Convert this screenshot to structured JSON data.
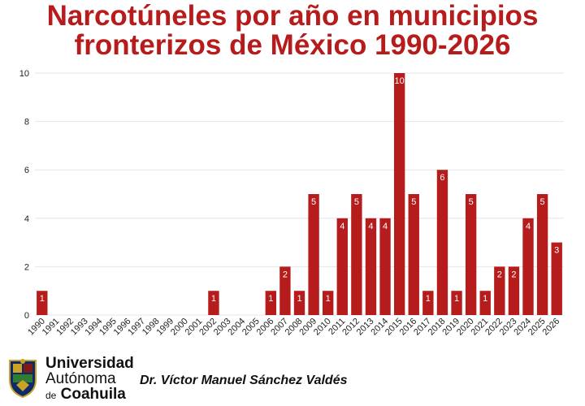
{
  "title_lines": [
    "Narcotúneles por año en municipios",
    "fronterizos de México 1990-2026"
  ],
  "colors": {
    "bar": "#b71c1c",
    "title": "#b71c1c",
    "grid": "#e6e6e6",
    "text": "#222222"
  },
  "chart_data": {
    "type": "bar",
    "title": "Narcotúneles por año en municipios fronterizos de México 1990-2026",
    "xlabel": "",
    "ylabel": "",
    "ylim": [
      0,
      10
    ],
    "yticks": [
      0,
      2,
      4,
      6,
      8,
      10
    ],
    "grid": true,
    "legend": "none",
    "categories": [
      "1990",
      "1991",
      "1992",
      "1993",
      "1994",
      "1995",
      "1996",
      "1997",
      "1998",
      "1999",
      "2000",
      "2001",
      "2002",
      "2003",
      "2004",
      "2005",
      "2006",
      "2007",
      "2008",
      "2009",
      "2010",
      "2011",
      "2012",
      "2013",
      "2014",
      "2015",
      "2016",
      "2017",
      "2018",
      "2019",
      "2020",
      "2021",
      "2022",
      "2023",
      "2024",
      "2025",
      "2026"
    ],
    "values": [
      1,
      0,
      0,
      0,
      0,
      0,
      0,
      0,
      0,
      0,
      0,
      0,
      1,
      0,
      0,
      0,
      1,
      2,
      1,
      5,
      1,
      4,
      5,
      4,
      4,
      10,
      5,
      1,
      6,
      1,
      5,
      1,
      2,
      2,
      4,
      5,
      3
    ]
  },
  "footer": {
    "university_line1": "Universidad",
    "university_line2": "Autónoma",
    "university_line3_de": "de",
    "university_line3_name": "Coahuila",
    "author": "Dr. Víctor Manuel Sánchez Valdés"
  }
}
